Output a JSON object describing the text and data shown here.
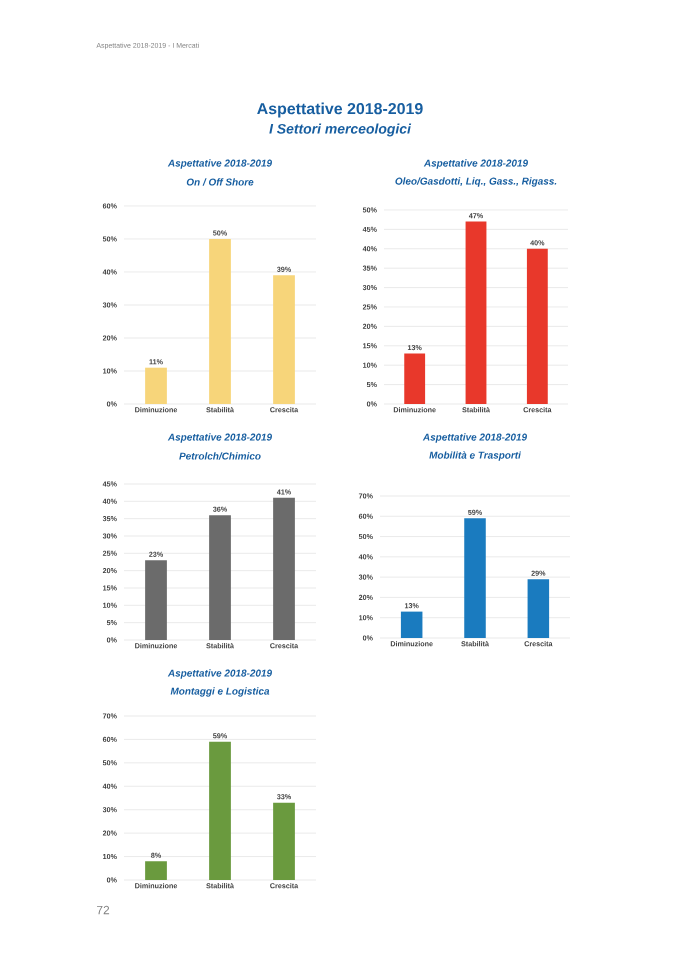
{
  "chart_data": [
    {
      "type": "bar",
      "title": "Aspettative 2018-2019",
      "subtitle": "On / Off Shore",
      "categories": [
        "Diminuzione",
        "Stabilità",
        "Crescita"
      ],
      "values": [
        11,
        50,
        39
      ],
      "value_labels": [
        "11%",
        "50%",
        "39%"
      ],
      "color": "#f7d57a",
      "ylim": [
        0,
        60
      ],
      "yticks": [
        {
          "value": 0,
          "label": "0%"
        },
        {
          "value": 10,
          "label": "10%"
        },
        {
          "value": 20,
          "label": "20%"
        },
        {
          "value": 30,
          "label": "30%"
        },
        {
          "value": 40,
          "label": "40%"
        },
        {
          "value": 50,
          "label": "50%"
        },
        {
          "value": 60,
          "label": "60%"
        }
      ],
      "grid": "y",
      "annotations": [
        "Aspettative 2018-2019 - I Mercati",
        "Aspettative 2018-2019",
        "I Settori merceologici",
        "72"
      ]
    },
    {
      "type": "bar",
      "title": "Aspettative 2018-2019",
      "subtitle": "Oleo/Gasdotti, Liq., Gass., Rigass.",
      "categories": [
        "Diminuzione",
        "Stabilità",
        "Crescita"
      ],
      "values": [
        13,
        47,
        40
      ],
      "value_labels": [
        "13%",
        "47%",
        "40%"
      ],
      "color": "#e8382b",
      "ylim": [
        0,
        50
      ],
      "yticks": [
        {
          "value": 0,
          "label": "0%"
        },
        {
          "value": 5,
          "label": "5%"
        },
        {
          "value": 10,
          "label": "10%"
        },
        {
          "value": 15,
          "label": "15%"
        },
        {
          "value": 20,
          "label": "20%"
        },
        {
          "value": 25,
          "label": "25%"
        },
        {
          "value": 30,
          "label": "30%"
        },
        {
          "value": 35,
          "label": "35%"
        },
        {
          "value": 40,
          "label": "40%"
        },
        {
          "value": 45,
          "label": "45%"
        },
        {
          "value": 50,
          "label": "50%"
        }
      ],
      "grid": "y"
    },
    {
      "type": "bar",
      "title": "Aspettative 2018-2019",
      "subtitle": "Petrolch/Chimico",
      "categories": [
        "Diminuzione",
        "Stabilità",
        "Crescita"
      ],
      "values": [
        23,
        36,
        41
      ],
      "value_labels": [
        "23%",
        "36%",
        "41%"
      ],
      "color": "#6b6b6b",
      "ylim": [
        0,
        45
      ],
      "yticks": [
        {
          "value": 0,
          "label": "0%"
        },
        {
          "value": 5,
          "label": "5%"
        },
        {
          "value": 10,
          "label": "10%"
        },
        {
          "value": 15,
          "label": "15%"
        },
        {
          "value": 20,
          "label": "20%"
        },
        {
          "value": 25,
          "label": "25%"
        },
        {
          "value": 30,
          "label": "30%"
        },
        {
          "value": 35,
          "label": "35%"
        },
        {
          "value": 40,
          "label": "40%"
        },
        {
          "value": 45,
          "label": "45%"
        }
      ],
      "grid": "y"
    },
    {
      "type": "bar",
      "title": "Aspettative 2018-2019",
      "subtitle": "Mobilità e Trasporti",
      "categories": [
        "Diminuzione",
        "Stabilità",
        "Crescita"
      ],
      "values": [
        13,
        59,
        29
      ],
      "value_labels": [
        "13%",
        "59%",
        "29%"
      ],
      "color": "#1a7bbf",
      "ylim": [
        0,
        70
      ],
      "yticks": [
        {
          "value": 0,
          "label": "0%"
        },
        {
          "value": 10,
          "label": "10%"
        },
        {
          "value": 20,
          "label": "20%"
        },
        {
          "value": 30,
          "label": "30%"
        },
        {
          "value": 40,
          "label": "40%"
        },
        {
          "value": 50,
          "label": "50%"
        },
        {
          "value": 60,
          "label": "60%"
        },
        {
          "value": 70,
          "label": "70%"
        }
      ],
      "grid": "y"
    },
    {
      "type": "bar",
      "title": "Aspettative 2018-2019",
      "subtitle": "Montaggi e Logistica",
      "categories": [
        "Diminuzione",
        "Stabilità",
        "Crescita"
      ],
      "values": [
        8,
        59,
        33
      ],
      "value_labels": [
        "8%",
        "59%",
        "33%"
      ],
      "color": "#6a9a3e",
      "ylim": [
        0,
        70
      ],
      "yticks": [
        {
          "value": 0,
          "label": "0%"
        },
        {
          "value": 10,
          "label": "10%"
        },
        {
          "value": 20,
          "label": "20%"
        },
        {
          "value": 30,
          "label": "30%"
        },
        {
          "value": 40,
          "label": "40%"
        },
        {
          "value": 50,
          "label": "50%"
        },
        {
          "value": 60,
          "label": "60%"
        },
        {
          "value": 70,
          "label": "70%"
        }
      ],
      "grid": "y"
    }
  ]
}
